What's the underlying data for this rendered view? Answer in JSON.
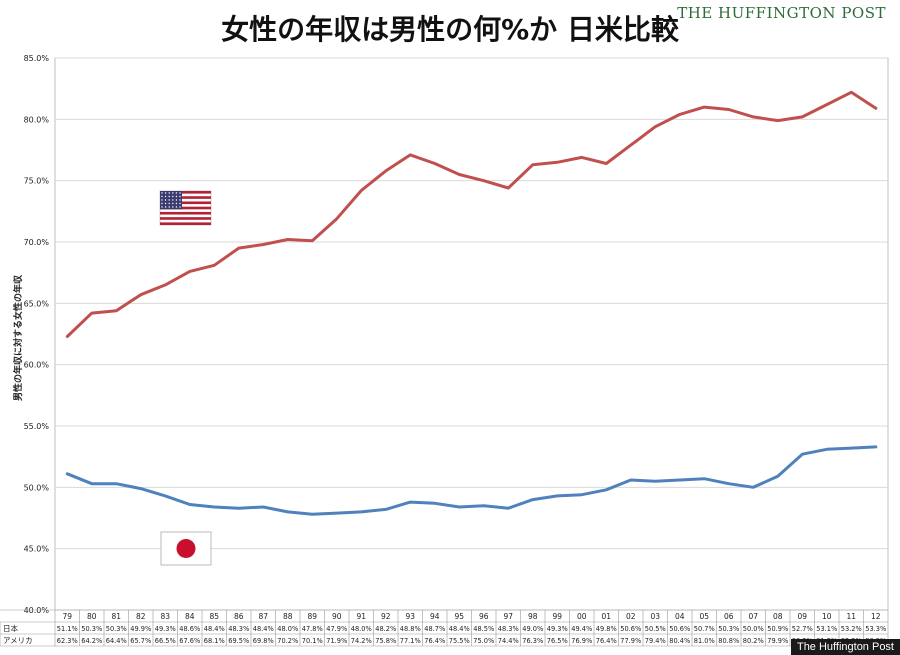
{
  "header": {
    "title": "女性の年収は男性の何%か 日米比較",
    "brand_top": "THE HUFFINGTON POST",
    "brand_bottom": "The Huffington Post"
  },
  "colors": {
    "usa": "#c0504d",
    "japan": "#4f81bd",
    "grid": "#d9d9d9"
  },
  "icons": {
    "usa_flag": "us-flag-icon",
    "japan_flag": "japan-flag-icon"
  },
  "chart_data": {
    "type": "line",
    "ylabel": "男性の年収に対する女性の年収",
    "ylim": [
      40,
      85
    ],
    "yticks": [
      "40.0%",
      "45.0%",
      "50.0%",
      "55.0%",
      "60.0%",
      "65.0%",
      "70.0%",
      "75.0%",
      "80.0%",
      "85.0%"
    ],
    "grid": true,
    "categories": [
      "79",
      "80",
      "81",
      "82",
      "83",
      "84",
      "85",
      "86",
      "87",
      "88",
      "89",
      "90",
      "91",
      "92",
      "93",
      "94",
      "95",
      "96",
      "97",
      "98",
      "99",
      "00",
      "01",
      "02",
      "03",
      "04",
      "05",
      "06",
      "07",
      "08",
      "09",
      "10",
      "11",
      "12"
    ],
    "series": [
      {
        "name": "日本",
        "values": [
          51.1,
          50.3,
          50.3,
          49.9,
          49.3,
          48.6,
          48.4,
          48.3,
          48.4,
          48.0,
          47.8,
          47.9,
          48.0,
          48.2,
          48.8,
          48.7,
          48.4,
          48.5,
          48.3,
          49.0,
          49.3,
          49.4,
          49.8,
          50.6,
          50.5,
          50.6,
          50.7,
          50.3,
          50.0,
          50.9,
          52.7,
          53.1,
          53.2,
          53.3
        ]
      },
      {
        "name": "アメリカ",
        "values": [
          62.3,
          64.2,
          64.4,
          65.7,
          66.5,
          67.6,
          68.1,
          69.5,
          69.8,
          70.2,
          70.1,
          71.9,
          74.2,
          75.8,
          77.1,
          76.4,
          75.5,
          75.0,
          74.4,
          76.3,
          76.5,
          76.9,
          76.4,
          77.9,
          79.4,
          80.4,
          81.0,
          80.8,
          80.2,
          79.9,
          80.2,
          81.2,
          82.2,
          80.9
        ]
      }
    ],
    "table": {
      "rows": [
        {
          "label": "日本",
          "values": [
            "51.1%",
            "50.3%",
            "50.3%",
            "49.9%",
            "49.3%",
            "48.6%",
            "48.4%",
            "48.3%",
            "48.4%",
            "48.0%",
            "47.8%",
            "47.9%",
            "48.0%",
            "48.2%",
            "48.8%",
            "48.7%",
            "48.4%",
            "48.5%",
            "48.3%",
            "49.0%",
            "49.3%",
            "49.4%",
            "49.8%",
            "50.6%",
            "50.5%",
            "50.6%",
            "50.7%",
            "50.3%",
            "50.0%",
            "50.9%",
            "52.7%",
            "53.1%",
            "53.2%",
            "53.3%"
          ]
        },
        {
          "label": "アメリカ",
          "values": [
            "62.3%",
            "64.2%",
            "64.4%",
            "65.7%",
            "66.5%",
            "67.6%",
            "68.1%",
            "69.5%",
            "69.8%",
            "70.2%",
            "70.1%",
            "71.9%",
            "74.2%",
            "75.8%",
            "77.1%",
            "76.4%",
            "75.5%",
            "75.0%",
            "74.4%",
            "76.3%",
            "76.5%",
            "76.9%",
            "76.4%",
            "77.9%",
            "79.4%",
            "80.4%",
            "81.0%",
            "80.8%",
            "80.2%",
            "79.9%",
            "80.2%",
            "81.2%",
            "82.2%",
            "80.9%"
          ]
        }
      ]
    }
  }
}
